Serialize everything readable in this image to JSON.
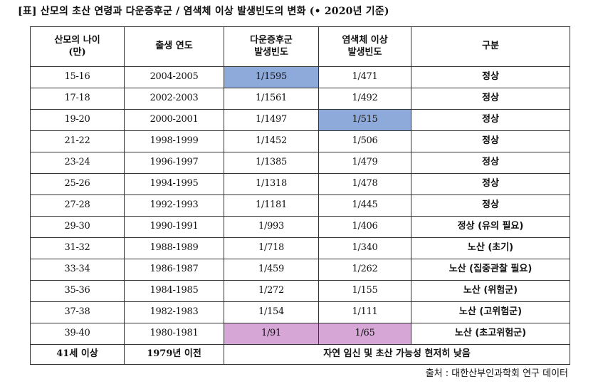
{
  "title": "[표] 산모의 초산 연령과 다운증후군 / 염색체 이상 발생빈도의 변화 (• 2020년 기준)",
  "table": {
    "headers": {
      "age_line1": "산모의 나이",
      "age_line2": "(만)",
      "birth_year": "출생 연도",
      "down_line1": "다운증후군",
      "down_line2": "발생빈도",
      "chrom_line1": "염색체 이상",
      "chrom_line2": "발생빈도",
      "category": "구분"
    },
    "rows": [
      {
        "age": "15-16",
        "year": "2004-2005",
        "down": "1/1595",
        "chrom": "1/471",
        "category": "정상"
      },
      {
        "age": "17-18",
        "year": "2002-2003",
        "down": "1/1561",
        "chrom": "1/492",
        "category": "정상"
      },
      {
        "age": "19-20",
        "year": "2000-2001",
        "down": "1/1497",
        "chrom": "1/515",
        "category": "정상"
      },
      {
        "age": "21-22",
        "year": "1998-1999",
        "down": "1/1452",
        "chrom": "1/506",
        "category": "정상"
      },
      {
        "age": "23-24",
        "year": "1996-1997",
        "down": "1/1385",
        "chrom": "1/479",
        "category": "정상"
      },
      {
        "age": "25-26",
        "year": "1994-1995",
        "down": "1/1318",
        "chrom": "1/478",
        "category": "정상"
      },
      {
        "age": "27-28",
        "year": "1992-1993",
        "down": "1/1181",
        "chrom": "1/445",
        "category": "정상"
      },
      {
        "age": "29-30",
        "year": "1990-1991",
        "down": "1/993",
        "chrom": "1/406",
        "category": "정상 (유의 필요)"
      },
      {
        "age": "31-32",
        "year": "1988-1989",
        "down": "1/718",
        "chrom": "1/340",
        "category": "노산 (초기)"
      },
      {
        "age": "33-34",
        "year": "1986-1987",
        "down": "1/459",
        "chrom": "1/262",
        "category": "노산 (집중관찰 필요)"
      },
      {
        "age": "35-36",
        "year": "1984-1985",
        "down": "1/272",
        "chrom": "1/155",
        "category": "노산 (위험군)"
      },
      {
        "age": "37-38",
        "year": "1982-1983",
        "down": "1/154",
        "chrom": "1/111",
        "category": "노산 (고위험군)"
      },
      {
        "age": "39-40",
        "year": "1980-1981",
        "down": "1/91",
        "chrom": "1/65",
        "category": "노산 (초고위험군)"
      }
    ],
    "last_row": {
      "age": "41세 이상",
      "year": "1979년 이전",
      "note": "자연 임신 및 초산 가능성 현저히 낮음"
    },
    "highlights": {
      "blue": "#8eaadb",
      "pink": "#d5a6d6"
    }
  },
  "source": "출처 : 대한산부인과학회 연구 데이터"
}
